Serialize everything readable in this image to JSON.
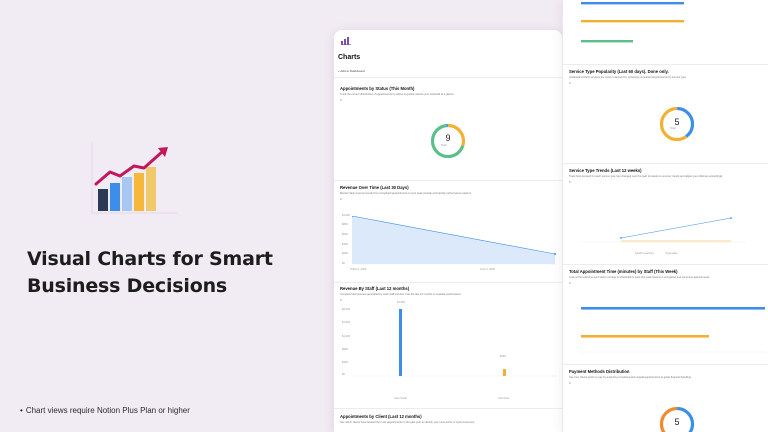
{
  "hero": {
    "headline_line1": "Visual Charts for Smart",
    "headline_line2": "Business Decisions",
    "footnote": "Chart views require  Notion Plus Plan or higher",
    "bar_colors": [
      "#2b3a55",
      "#3d8ee8",
      "#a8c7f0",
      "#f5b83a",
      "#f0c96b"
    ],
    "arrow_color": "#c2185b"
  },
  "panel_a": {
    "title": "Charts",
    "add_link": "Add to Dashboard",
    "appointments": {
      "title": "Appointments by Status (This Month)",
      "desc": "Track the current distribution of appointments by status to quickly assess your workload at a glance.",
      "chip": "0",
      "total": "9",
      "total_label": "Total",
      "colors": [
        "#f2b134",
        "#5cbf8a",
        "#4a9be3"
      ]
    },
    "revenue_time": {
      "title": "Revenue Over Time (Last 30 Days)",
      "desc": "Monitor daily revenue trends from completed appointments to spot peak periods and identify performance patterns.",
      "chip": "0",
      "y_ticks": [
        "$1,000",
        "$800",
        "$600",
        "$400",
        "$200",
        "$0"
      ],
      "x_ticks": [
        "Today 5, 2025",
        "June 6, 2025"
      ]
    },
    "revenue_staff": {
      "title": "Revenue By Staff (Last 12 months)",
      "desc": "Compare total revenue generated by each staff member over the last 12 months to evaluate performance.",
      "chip": "0",
      "y_ticks": [
        "$2,000",
        "$1,600",
        "$1,200",
        "$800",
        "$400",
        "$0"
      ],
      "bar_labels": [
        "$1,950",
        "$150"
      ],
      "x_ticks": [
        "Jane Smith",
        "John Doe"
      ]
    },
    "appointments_client": {
      "title": "Appointments by Client (Last 12 months)",
      "desc": "See which clients have booked the most appointments in the past year to identify your most active or loyal customers."
    }
  },
  "panel_b": {
    "top_bar_colors": [
      "#3d8ee8",
      "#f2b134",
      "#5cbf8a"
    ],
    "service_popularity": {
      "title": "Service Type Popularity (Last 60 days). Done only.",
      "desc": "Understand which services are most in demand by reviewing completed appointments by service type.",
      "chip": "0",
      "total": "5",
      "total_label": "Total"
    },
    "service_trends": {
      "title": "Service Type Trends (Last 12 weeks)",
      "desc": "Track how demand for each service type has changed over the past 12 weeks to uncover trends and adjust your offerings accordingly.",
      "chip": "0",
      "legend": [
        "Health coaching",
        "Yoga class"
      ]
    },
    "total_time": {
      "title": "Total Appointment Time (minutes) by Staff (This Week)",
      "desc": "Look at the total time each team member is scheduled to work this week based on completed and upcoming appointments.",
      "chip": "0",
      "bar_colors": [
        "#3d8ee8",
        "#f2b134"
      ]
    },
    "payment_methods": {
      "title": "Payment Methods Distribution",
      "desc": "See how clients prefer to pay by analyzing completed and unpaid appointments to guide financial handling.",
      "chip": "0",
      "total": "5",
      "total_label": "Total"
    }
  }
}
